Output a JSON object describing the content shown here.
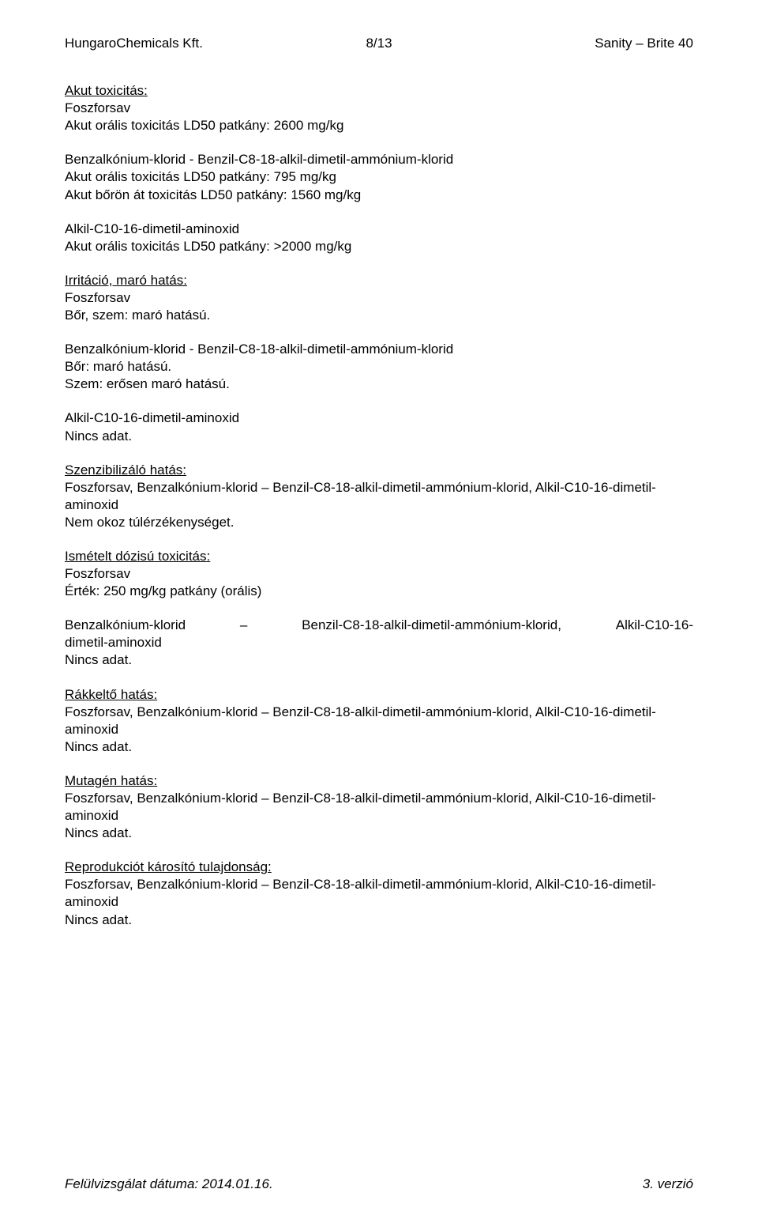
{
  "header": {
    "left": "HungaroChemicals Kft.",
    "center": "8/13",
    "right": "Sanity – Brite 40"
  },
  "sections": {
    "acute_toxicity": {
      "title": "Akut toxicitás:",
      "lines": [
        "Foszforsav",
        "Akut orális toxicitás LD50 patkány: 2600 mg/kg"
      ]
    },
    "benzalkonium1": {
      "lines": [
        "Benzalkónium-klorid - Benzil-C8-18-alkil-dimetil-ammónium-klorid",
        "Akut orális toxicitás LD50 patkány: 795 mg/kg",
        "Akut bőrön át toxicitás LD50 patkány: 1560 mg/kg"
      ]
    },
    "alkil1": {
      "lines": [
        "Alkil-C10-16-dimetil-aminoxid",
        "Akut orális toxicitás LD50 patkány: >2000 mg/kg"
      ]
    },
    "irritation": {
      "title": "Irritáció, maró hatás:",
      "lines": [
        "Foszforsav",
        "Bőr, szem: maró hatású."
      ]
    },
    "benzalkonium2": {
      "lines": [
        "Benzalkónium-klorid - Benzil-C8-18-alkil-dimetil-ammónium-klorid",
        "Bőr: maró hatású.",
        "Szem: erősen maró hatású."
      ]
    },
    "alkil2": {
      "lines": [
        "Alkil-C10-16-dimetil-aminoxid",
        "Nincs adat."
      ]
    },
    "sensitizing": {
      "title": "Szenzibilizáló hatás:",
      "lines": [
        "Foszforsav, Benzalkónium-klorid – Benzil-C8-18-alkil-dimetil-ammónium-klorid, Alkil-C10-16-dimetil-aminoxid",
        "Nem okoz túlérzékenységet."
      ]
    },
    "repeated_dose": {
      "title": "Ismételt dózisú toxicitás:",
      "lines": [
        "Foszforsav",
        "Érték: 250 mg/kg patkány (orális)"
      ]
    },
    "benzalkonium3": {
      "justified_parts": [
        "Benzalkónium-klorid",
        "–",
        "Benzil-C8-18-alkil-dimetil-ammónium-klorid,",
        "Alkil-C10-16-"
      ],
      "lines": [
        "dimetil-aminoxid",
        "Nincs adat."
      ]
    },
    "carcinogenic": {
      "title": "Rákkeltő hatás:",
      "lines": [
        "Foszforsav, Benzalkónium-klorid – Benzil-C8-18-alkil-dimetil-ammónium-klorid, Alkil-C10-16-dimetil-aminoxid",
        "Nincs adat."
      ]
    },
    "mutagenic": {
      "title": "Mutagén hatás:",
      "lines": [
        "Foszforsav, Benzalkónium-klorid – Benzil-C8-18-alkil-dimetil-ammónium-klorid, Alkil-C10-16-dimetil-aminoxid",
        "Nincs adat."
      ]
    },
    "reproductive": {
      "title": "Reprodukciót károsító tulajdonság:",
      "lines": [
        "Foszforsav, Benzalkónium-klorid – Benzil-C8-18-alkil-dimetil-ammónium-klorid, Alkil-C10-16-dimetil-aminoxid",
        "Nincs adat."
      ]
    }
  },
  "footer": {
    "left": "Felülvizsgálat dátuma: 2014.01.16.",
    "right": "3. verzió"
  }
}
